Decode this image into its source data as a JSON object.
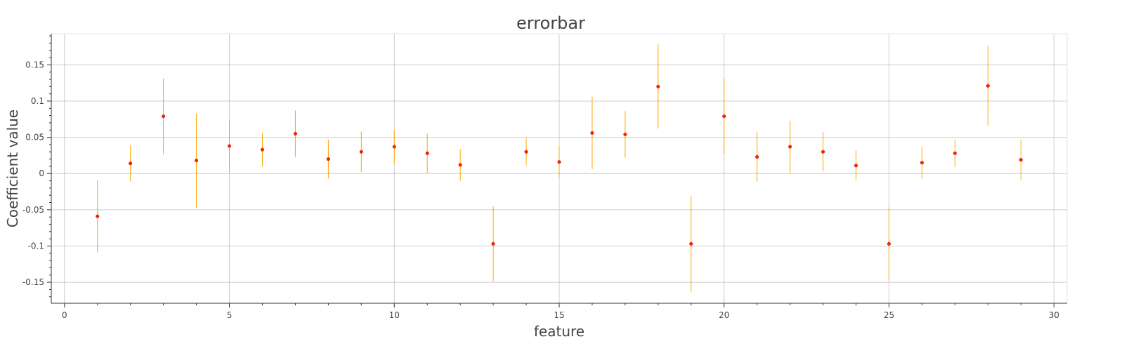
{
  "chart_data": {
    "type": "scatter",
    "title": "errorbar",
    "xlabel": "feature",
    "ylabel": "Coefficient value",
    "xlim": [
      -0.4,
      30.4
    ],
    "ylim": [
      -0.179,
      0.193
    ],
    "x_ticks": [
      0,
      5,
      10,
      15,
      20,
      25,
      30
    ],
    "x_tick_labels": [
      "0",
      "5",
      "10",
      "15",
      "20",
      "25",
      "30"
    ],
    "y_ticks": [
      -0.15,
      -0.1,
      -0.05,
      0,
      0.05,
      0.1,
      0.15
    ],
    "y_tick_labels": [
      "-0.15",
      "-0.1",
      "-0.05",
      "0",
      "0.05",
      "0.1",
      "0.15"
    ],
    "grid": true,
    "series": [
      {
        "x": [
          1,
          2,
          3,
          4,
          5,
          6,
          7,
          8,
          9,
          10,
          11,
          12,
          13,
          14,
          15,
          16,
          17,
          18,
          19,
          20,
          21,
          22,
          23,
          24,
          25,
          26,
          27,
          28,
          29
        ],
        "y": [
          -0.059,
          0.014,
          0.079,
          0.018,
          0.038,
          0.033,
          0.055,
          0.02,
          0.03,
          0.037,
          0.028,
          0.012,
          -0.097,
          0.03,
          0.016,
          0.056,
          0.054,
          0.12,
          -0.097,
          0.079,
          0.023,
          0.037,
          0.03,
          0.011,
          -0.097,
          0.015,
          0.028,
          0.121,
          0.019
        ],
        "yerr": [
          0.05,
          0.025,
          0.052,
          0.065,
          0.036,
          0.023,
          0.032,
          0.027,
          0.028,
          0.023,
          0.027,
          0.022,
          0.052,
          0.019,
          0.022,
          0.05,
          0.032,
          0.058,
          0.066,
          0.052,
          0.034,
          0.036,
          0.027,
          0.021,
          0.051,
          0.022,
          0.019,
          0.055,
          0.028
        ]
      }
    ],
    "colors": {
      "marker": "#ff2200",
      "errorbar": "#ffa500",
      "grid": "#cccccc",
      "axis": "#333333",
      "text": "#444444"
    }
  }
}
